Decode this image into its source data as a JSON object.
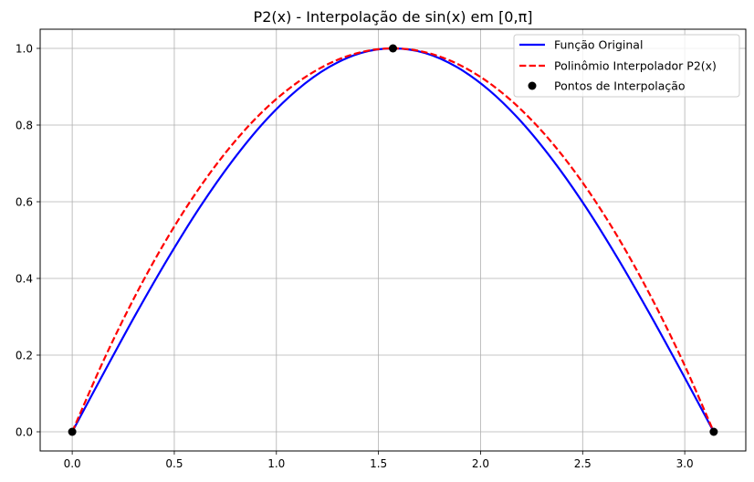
{
  "chart_data": {
    "type": "line",
    "title": "P2(x) - Interpolação de sin(x) em [0,π]",
    "xlabel": "",
    "ylabel": "",
    "xlim": [
      -0.157,
      3.299
    ],
    "ylim": [
      -0.05,
      1.05
    ],
    "grid": true,
    "legend_position": "top-right",
    "x_ticks": [
      "0.0",
      "0.5",
      "1.0",
      "1.5",
      "2.0",
      "2.5",
      "3.0"
    ],
    "y_ticks": [
      "0.0",
      "0.2",
      "0.4",
      "0.6",
      "0.8",
      "1.0"
    ],
    "series": [
      {
        "name": "Função Original",
        "kind": "line",
        "style": "solid",
        "color": "#0000ff",
        "points": [
          [
            0,
            0
          ],
          [
            0.157,
            0.156
          ],
          [
            0.314,
            0.309
          ],
          [
            0.471,
            0.454
          ],
          [
            0.628,
            0.588
          ],
          [
            0.785,
            0.707
          ],
          [
            0.942,
            0.809
          ],
          [
            1.1,
            0.891
          ],
          [
            1.257,
            0.951
          ],
          [
            1.414,
            0.988
          ],
          [
            1.571,
            1.0
          ],
          [
            1.728,
            0.988
          ],
          [
            1.885,
            0.951
          ],
          [
            2.042,
            0.891
          ],
          [
            2.199,
            0.809
          ],
          [
            2.356,
            0.707
          ],
          [
            2.513,
            0.588
          ],
          [
            2.67,
            0.454
          ],
          [
            2.827,
            0.309
          ],
          [
            2.985,
            0.156
          ],
          [
            3.142,
            0
          ]
        ]
      },
      {
        "name": "Polinômio Interpolador P2(x)",
        "kind": "line",
        "style": "dashed",
        "color": "#ff0000",
        "points": [
          [
            0,
            0
          ],
          [
            0.157,
            0.19
          ],
          [
            0.314,
            0.36
          ],
          [
            0.471,
            0.51
          ],
          [
            0.628,
            0.64
          ],
          [
            0.785,
            0.75
          ],
          [
            0.942,
            0.84
          ],
          [
            1.1,
            0.91
          ],
          [
            1.257,
            0.96
          ],
          [
            1.414,
            0.99
          ],
          [
            1.571,
            1.0
          ],
          [
            1.728,
            0.99
          ],
          [
            1.885,
            0.96
          ],
          [
            2.042,
            0.91
          ],
          [
            2.199,
            0.84
          ],
          [
            2.356,
            0.75
          ],
          [
            2.513,
            0.64
          ],
          [
            2.67,
            0.51
          ],
          [
            2.827,
            0.36
          ],
          [
            2.985,
            0.19
          ],
          [
            3.142,
            0
          ]
        ]
      },
      {
        "name": "Pontos de Interpolação",
        "kind": "scatter",
        "color": "#000000",
        "points": [
          [
            0,
            0
          ],
          [
            1.571,
            1.0
          ],
          [
            3.142,
            0
          ]
        ]
      }
    ]
  }
}
